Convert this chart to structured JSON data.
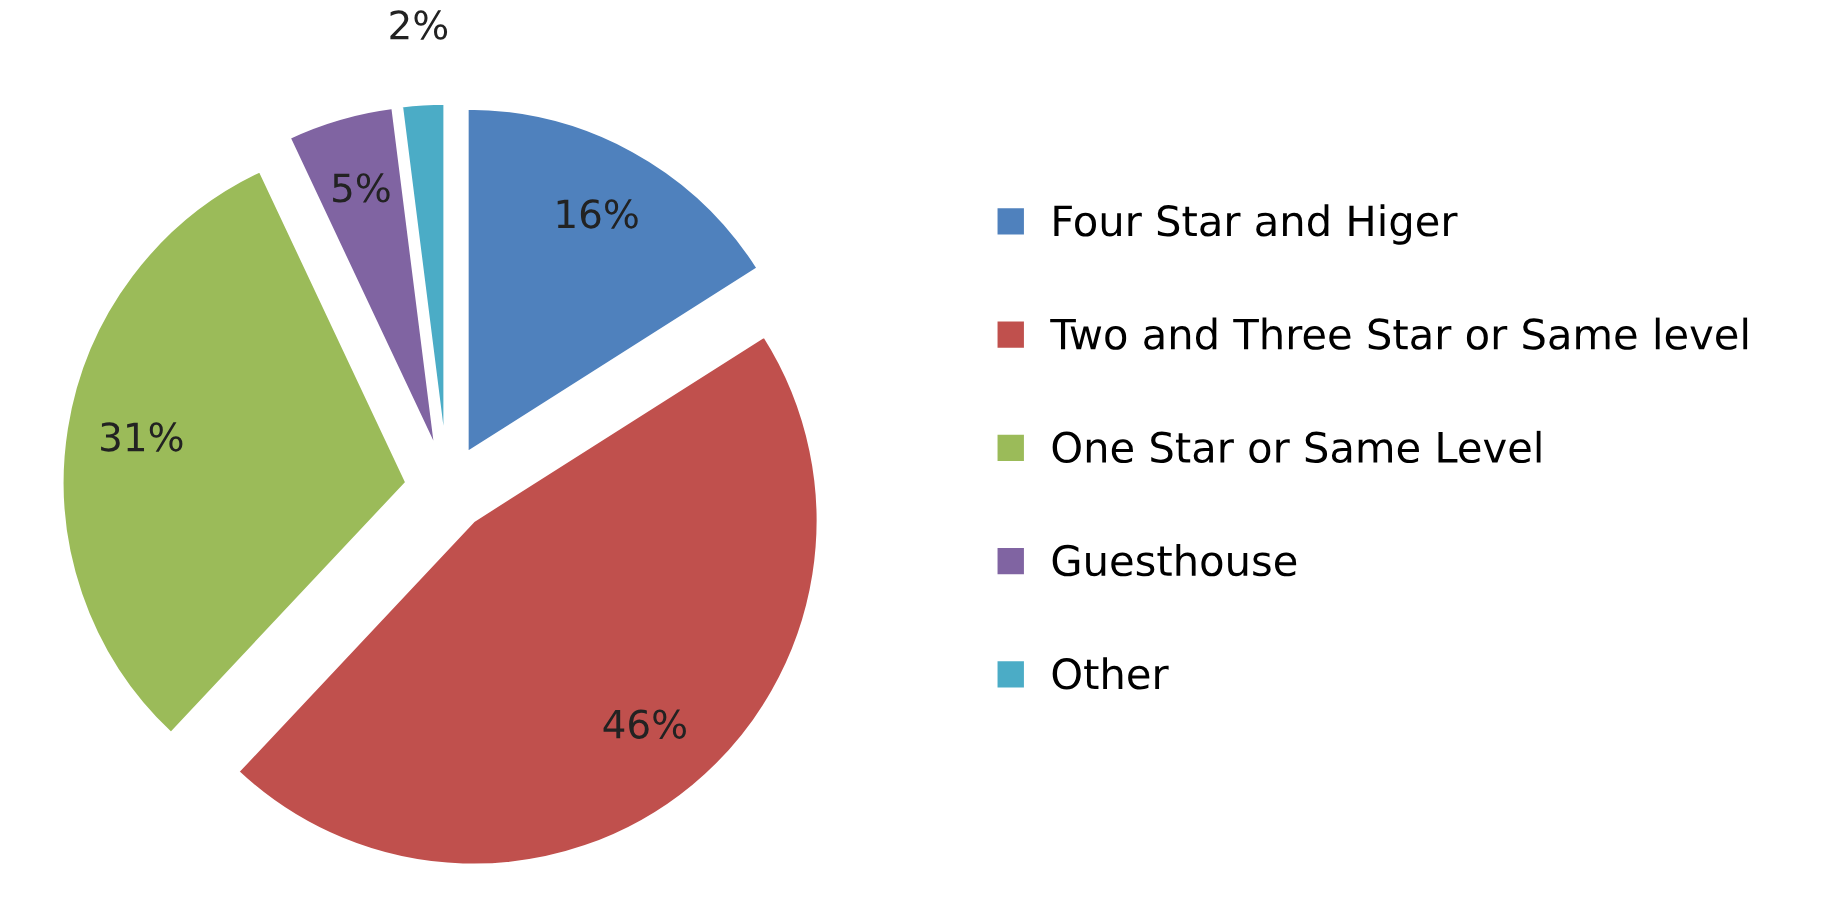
{
  "chart_data": {
    "type": "pie",
    "categories": [
      "Four Star and Higer",
      "Two and Three Star or Same level",
      "One Star or Same Level",
      "Guesthouse",
      "Other"
    ],
    "values": [
      16,
      46,
      31,
      5,
      2
    ],
    "colors": [
      "#4f81bd",
      "#c0504d",
      "#9bbb59",
      "#8064a2",
      "#4bacc6"
    ],
    "value_labels": [
      "16%",
      "46%",
      "31%",
      "5%",
      "2%"
    ],
    "legend": "right"
  }
}
